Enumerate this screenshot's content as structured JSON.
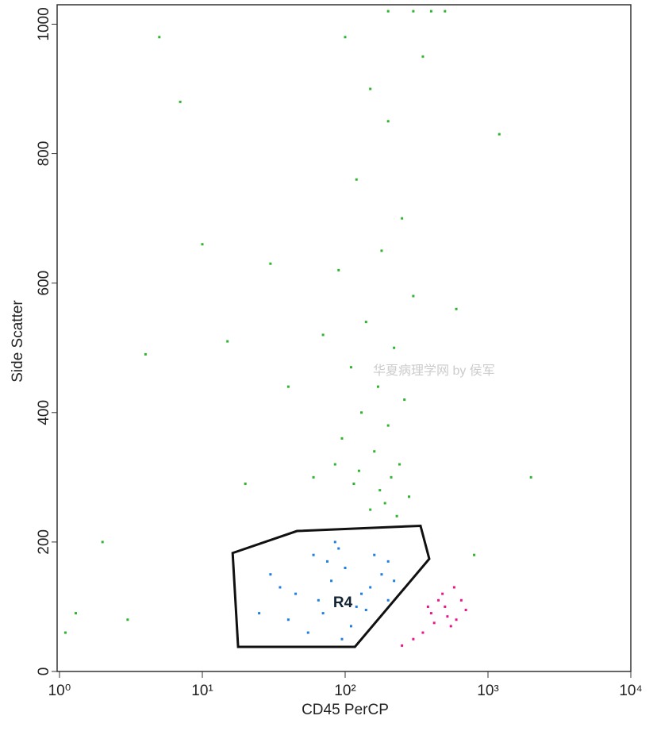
{
  "chart_data": {
    "type": "scatter",
    "xlabel": "CD45 PerCP",
    "ylabel": "Side Scatter",
    "xscale": "log",
    "xlim": [
      1,
      10000
    ],
    "xticks": [
      {
        "value": 1,
        "label": "10⁰"
      },
      {
        "value": 10,
        "label": "10¹"
      },
      {
        "value": 100,
        "label": "10²"
      },
      {
        "value": 1000,
        "label": "10³"
      },
      {
        "value": 10000,
        "label": "10⁴"
      }
    ],
    "ylim": [
      0,
      1030
    ],
    "yticks": [
      0,
      200,
      400,
      600,
      800,
      1000
    ],
    "series": [
      {
        "color": "#2db52d",
        "x": [
          100,
          150,
          200,
          120,
          250,
          180,
          90,
          300,
          140,
          220,
          110,
          170,
          260,
          130,
          200,
          95,
          160,
          240,
          210,
          115,
          280,
          190,
          150,
          230,
          85,
          125,
          175,
          350,
          70,
          60,
          5,
          7,
          10,
          4,
          30,
          20,
          2,
          1.1,
          1.3,
          3,
          15,
          40,
          600,
          1200,
          800,
          2000,
          200,
          300,
          400,
          500
        ],
        "values": [
          980,
          900,
          850,
          760,
          700,
          650,
          620,
          580,
          540,
          500,
          470,
          440,
          420,
          400,
          380,
          360,
          340,
          320,
          300,
          290,
          270,
          260,
          250,
          240,
          320,
          310,
          280,
          950,
          520,
          300,
          980,
          880,
          660,
          490,
          630,
          290,
          200,
          60,
          90,
          80,
          510,
          440,
          560,
          830,
          180,
          300,
          1020,
          1020,
          1020,
          1020
        ]
      },
      {
        "color": "#1e7fe0",
        "x": [
          30,
          45,
          60,
          80,
          100,
          120,
          150,
          200,
          200,
          40,
          70,
          90,
          110,
          130,
          180,
          55,
          85,
          65,
          140,
          35,
          25,
          220,
          95,
          75,
          160
        ],
        "values": [
          150,
          120,
          180,
          140,
          160,
          100,
          130,
          170,
          110,
          80,
          90,
          190,
          70,
          120,
          150,
          60,
          200,
          110,
          95,
          130,
          90,
          140,
          50,
          170,
          180
        ]
      },
      {
        "color": "#e8158c",
        "x": [
          400,
          500,
          600,
          450,
          550,
          350,
          700,
          480,
          520,
          300,
          650,
          420,
          580,
          380,
          250
        ],
        "values": [
          90,
          100,
          80,
          110,
          70,
          60,
          95,
          120,
          85,
          50,
          110,
          75,
          130,
          100,
          40
        ]
      }
    ],
    "gate": {
      "label": "R4",
      "x": [
        16.3,
        46,
        337,
        388,
        117,
        17.8
      ],
      "y": [
        183,
        217,
        225,
        174,
        38,
        38
      ]
    },
    "annotations": [
      "华夏病理学网 by 侯军"
    ]
  }
}
